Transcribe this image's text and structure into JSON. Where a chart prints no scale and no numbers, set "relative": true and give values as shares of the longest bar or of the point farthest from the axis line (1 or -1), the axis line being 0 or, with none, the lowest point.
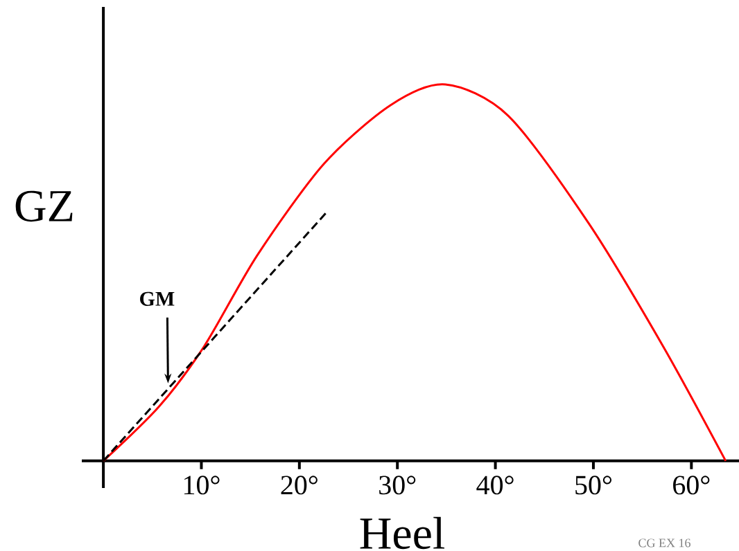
{
  "chart_data": {
    "type": "line",
    "relative": true,
    "xlabel": "Heel",
    "ylabel": "GZ",
    "xlim": [
      -2.2,
      65
    ],
    "xticks": [
      {
        "value": 10,
        "label": "10°"
      },
      {
        "value": 20,
        "label": "20°"
      },
      {
        "value": 30,
        "label": "30°"
      },
      {
        "value": 40,
        "label": "40°"
      },
      {
        "value": 50,
        "label": "50°"
      },
      {
        "value": 60,
        "label": "60°"
      }
    ],
    "series": [
      {
        "color": "#ff0000",
        "x": [
          0,
          5.7,
          10.3,
          15.7,
          22.5,
          29.3,
          34.9,
          41.3,
          49.5,
          57.1,
          63.5
        ],
        "values": [
          0,
          0.145,
          0.305,
          0.546,
          0.789,
          0.945,
          1,
          0.917,
          0.632,
          0.305,
          0
        ]
      },
      {
        "color": "#000000",
        "line_style": "dashed",
        "x": [
          0,
          22.9
        ],
        "values": [
          0,
          0.664
        ]
      }
    ],
    "annotations": [
      {
        "text": "GM",
        "x": 6.6,
        "y": 0.206
      },
      "CG EX 16"
    ]
  }
}
